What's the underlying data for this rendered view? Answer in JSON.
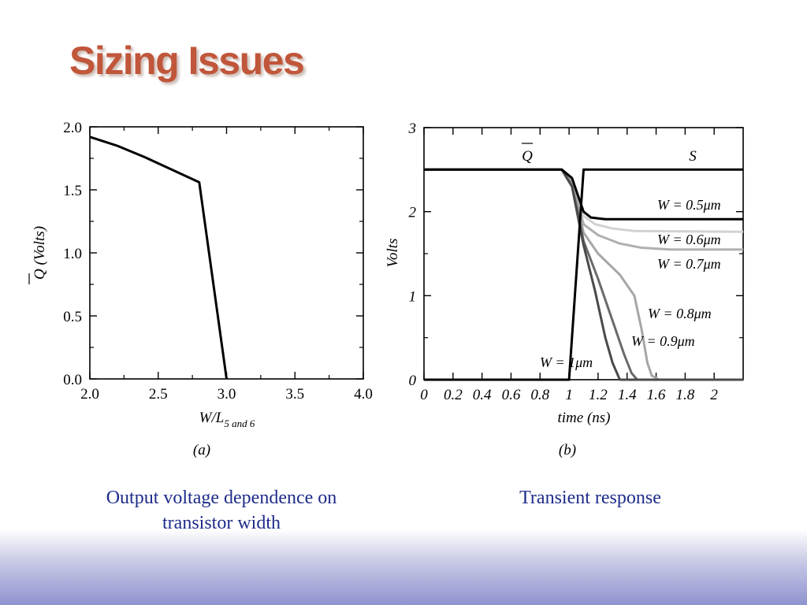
{
  "slide": {
    "title": "Sizing Issues",
    "captions": [
      "Output voltage dependence on transistor width",
      "Transient response"
    ],
    "colors": {
      "title": "#c0563a",
      "caption": "#1e2b8a",
      "footer_gradient": "#8f93cf"
    }
  },
  "chart_data": [
    {
      "type": "line",
      "panel_label": "(a)",
      "xlabel": "W/L",
      "xlabel_sub": "5 and 6",
      "ylabel": "Q (Volts)",
      "ylabel_overline_char": "Q",
      "xlim": [
        2.0,
        4.0
      ],
      "ylim": [
        0.0,
        2.0
      ],
      "xticks": [
        "2.0",
        "2.5",
        "3.0",
        "3.5",
        "4.0"
      ],
      "yticks": [
        "0.0",
        "0.5",
        "1.0",
        "1.5",
        "2.0"
      ],
      "series": [
        {
          "color": "#000000",
          "x": [
            2.0,
            2.2,
            2.4,
            2.6,
            2.8,
            3.0
          ],
          "y": [
            1.92,
            1.85,
            1.76,
            1.66,
            1.56,
            0.0
          ]
        }
      ]
    },
    {
      "type": "line",
      "panel_label": "(b)",
      "xlabel": "time (ns)",
      "ylabel": "Volts",
      "xlim": [
        0,
        2.2
      ],
      "ylim": [
        0,
        3
      ],
      "xticks": [
        "0",
        "0.2",
        "0.4",
        "0.6",
        "0.8",
        "1",
        "1.2",
        "1.4",
        "1.6",
        "1.8",
        "2"
      ],
      "xtick_values": [
        0,
        0.2,
        0.4,
        0.6,
        0.8,
        1,
        1.2,
        1.4,
        1.6,
        1.8,
        2
      ],
      "yticks": [
        "0",
        "1",
        "2",
        "3"
      ],
      "annotations": [
        "Q",
        "S",
        "W = 0.5μm",
        "W = 0.6μm",
        "W = 0.7μm",
        "W = 0.8μm",
        "W = 0.9μm",
        "W = 1μm"
      ],
      "series": [
        {
          "name": "S",
          "color": "#000000",
          "x": [
            0,
            1.0,
            1.1,
            2.2
          ],
          "y": [
            0,
            0,
            2.5,
            2.5
          ]
        },
        {
          "name": "W = 0.5μm",
          "color": "#000000",
          "x": [
            0,
            0.95,
            1.02,
            1.06,
            1.1,
            1.15,
            1.25,
            2.2
          ],
          "y": [
            2.5,
            2.5,
            2.4,
            2.2,
            2.0,
            1.93,
            1.91,
            1.91
          ]
        },
        {
          "name": "W = 0.6μm",
          "color": "#d2d2d2",
          "x": [
            0,
            0.95,
            1.02,
            1.06,
            1.1,
            1.18,
            1.3,
            1.45,
            2.2
          ],
          "y": [
            2.5,
            2.5,
            2.4,
            2.2,
            1.95,
            1.85,
            1.8,
            1.77,
            1.76
          ]
        },
        {
          "name": "W = 0.7μm",
          "color": "#b0b0b0",
          "x": [
            0,
            0.95,
            1.02,
            1.06,
            1.1,
            1.2,
            1.35,
            1.5,
            1.7,
            2.2
          ],
          "y": [
            2.5,
            2.5,
            2.35,
            2.1,
            1.85,
            1.72,
            1.62,
            1.57,
            1.55,
            1.55
          ]
        },
        {
          "name": "W = 0.8μm",
          "color": "#a6a6a6",
          "x": [
            0,
            0.95,
            1.02,
            1.06,
            1.1,
            1.2,
            1.35,
            1.45,
            1.5,
            1.54,
            1.57,
            1.62,
            2.2
          ],
          "y": [
            2.5,
            2.5,
            2.35,
            2.05,
            1.75,
            1.5,
            1.25,
            1.0,
            0.6,
            0.2,
            0.05,
            0.0,
            0.0
          ]
        },
        {
          "name": "W = 0.9μm",
          "color": "#6a6a6a",
          "x": [
            0,
            0.95,
            1.02,
            1.06,
            1.1,
            1.2,
            1.3,
            1.38,
            1.43,
            1.47,
            2.2
          ],
          "y": [
            2.5,
            2.5,
            2.3,
            2.0,
            1.65,
            1.2,
            0.7,
            0.3,
            0.08,
            0.0,
            0.0
          ]
        },
        {
          "name": "W = 1μm",
          "color": "#4a4a4a",
          "x": [
            0,
            0.95,
            1.02,
            1.06,
            1.1,
            1.18,
            1.25,
            1.3,
            1.35,
            2.2
          ],
          "y": [
            2.5,
            2.5,
            2.3,
            1.95,
            1.6,
            1.05,
            0.5,
            0.2,
            0.0,
            0.0
          ]
        }
      ]
    }
  ]
}
